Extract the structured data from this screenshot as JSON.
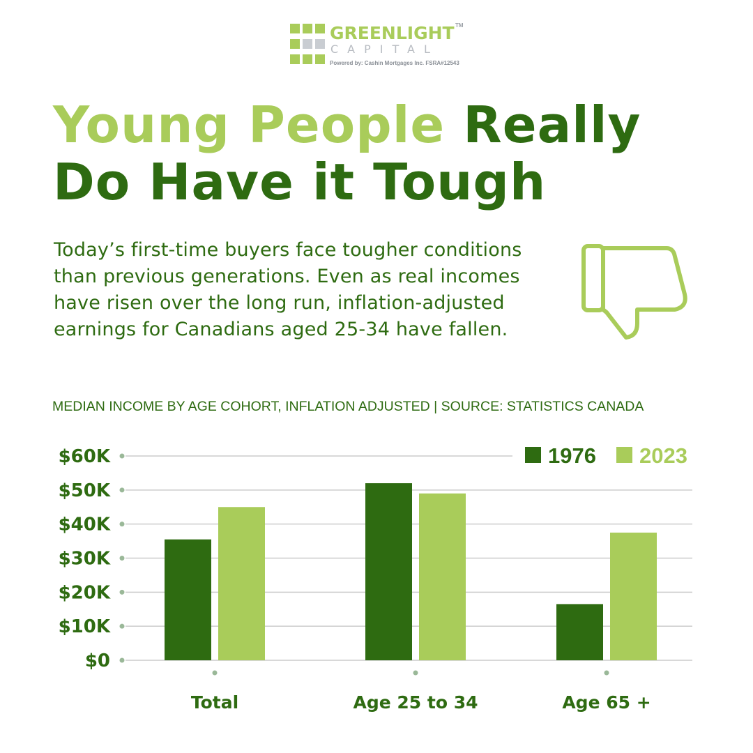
{
  "colors": {
    "dark_green": "#2e6b11",
    "light_green": "#a9cc5a",
    "grid": "#cccccc",
    "tick_dot": "#9ab898",
    "logo_gray": "#c9cdd2"
  },
  "logo": {
    "word_top": "GREENLIGHT",
    "word_bottom": "CAPITAL",
    "tm": "TM",
    "powered": "Powered by:  Cashin Mortgages Inc.  FSRA#12543"
  },
  "headline": {
    "part1": "Young People",
    "part2": " Really",
    "line2": "Do Have it Tough"
  },
  "intro": "Today’s first-time buyers face tougher conditions than previous generations. Even as real incomes have risen over the long run, inflation-adjusted earnings for Canadians aged 25-34 have fallen.",
  "icons": {
    "thumb": "thumbs-down-icon"
  },
  "chart_data": {
    "type": "bar",
    "title": "MEDIAN INCOME BY AGE COHORT, INFLATION ADJUSTED | SOURCE: STATISTICS CANADA",
    "categories": [
      "Total",
      "Age 25 to 34",
      "Age 65 +"
    ],
    "series": [
      {
        "name": "1976",
        "values": [
          35500,
          52000,
          16500
        ]
      },
      {
        "name": "2023",
        "values": [
          45000,
          49000,
          37500
        ]
      }
    ],
    "y_ticks": [
      {
        "value": 0,
        "label": "$0"
      },
      {
        "value": 10000,
        "label": "$10K"
      },
      {
        "value": 20000,
        "label": "$20K"
      },
      {
        "value": 30000,
        "label": "$30K"
      },
      {
        "value": 40000,
        "label": "$40K"
      },
      {
        "value": 50000,
        "label": "$50K"
      },
      {
        "value": 60000,
        "label": "$60K"
      }
    ],
    "ylim": [
      0,
      60000
    ],
    "grid": true,
    "legend": "top-right",
    "xlabel": "",
    "ylabel": ""
  }
}
